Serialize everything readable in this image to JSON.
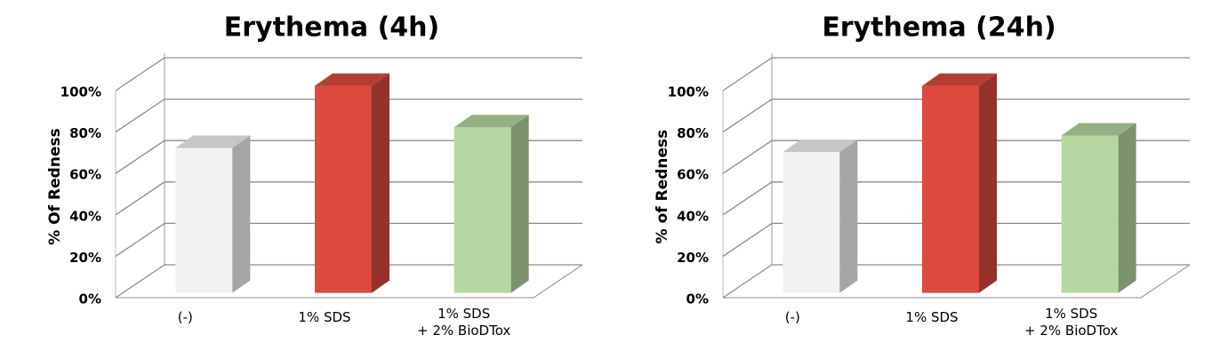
{
  "chart_data": [
    {
      "type": "bar3d",
      "title": "Erythema (4h)",
      "y_label": "% Of  Redness",
      "categories": [
        "(-)",
        "1% SDS",
        "1% SDS\n+ 2% BioDTox"
      ],
      "values": [
        70,
        100,
        80
      ],
      "colors": [
        "#f2f2f2",
        "#db4a3c",
        "#b6d7a1"
      ],
      "ylim": [
        0,
        100
      ],
      "yticks": [
        {
          "value": 0,
          "label": "0%"
        },
        {
          "value": 20,
          "label": "20%"
        },
        {
          "value": 40,
          "label": "40%"
        },
        {
          "value": 60,
          "label": "60%"
        },
        {
          "value": 80,
          "label": "80%"
        },
        {
          "value": 100,
          "label": "100%"
        }
      ],
      "grid": true
    },
    {
      "type": "bar3d",
      "title": "Erythema (24h)",
      "y_label": "% of Redness",
      "categories": [
        "(-)",
        "1% SDS",
        "1% SDS\n+ 2% BioDTox"
      ],
      "values": [
        68,
        100,
        76
      ],
      "colors": [
        "#f2f2f2",
        "#db4a3c",
        "#b6d7a1"
      ],
      "ylim": [
        0,
        100
      ],
      "yticks": [
        {
          "value": 0,
          "label": "0%"
        },
        {
          "value": 20,
          "label": "20%"
        },
        {
          "value": 40,
          "label": "40%"
        },
        {
          "value": 60,
          "label": "60%"
        },
        {
          "value": 80,
          "label": "80%"
        },
        {
          "value": 100,
          "label": "100%"
        }
      ],
      "grid": true
    }
  ]
}
